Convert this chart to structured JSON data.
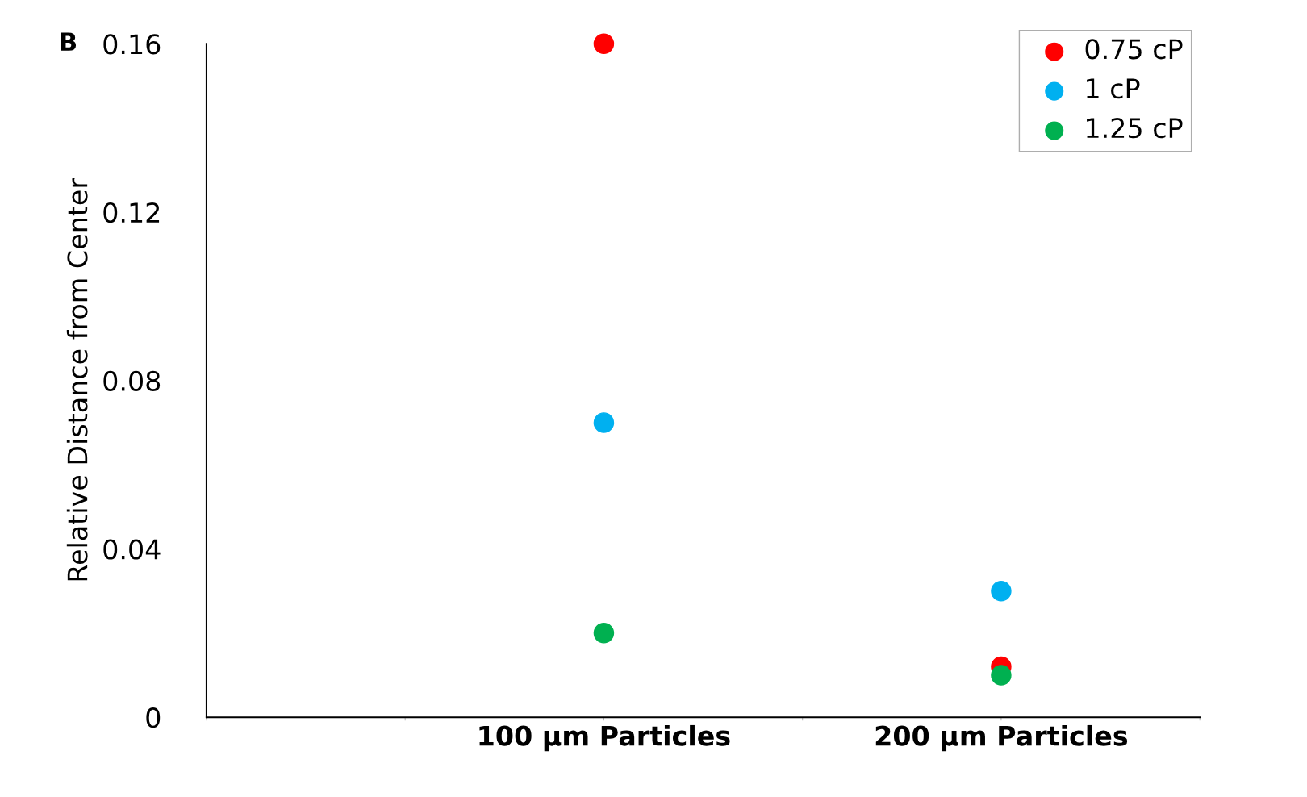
{
  "chart_data": {
    "type": "scatter",
    "ylabel": "Relative Distance from Center",
    "annotations": [
      "B"
    ],
    "categories": [
      null,
      null,
      "100 μm Particles",
      null,
      "200 μm Particles",
      null
    ],
    "ylim": [
      0,
      0.16
    ],
    "yticks": [
      0,
      0.04,
      0.08,
      0.12,
      0.16
    ],
    "series": [
      {
        "name": "0.75 cP",
        "color": "#ff0000",
        "values": [
          null,
          null,
          0.16,
          null,
          0.012,
          null
        ]
      },
      {
        "name": "1 cP",
        "color": "#00b0f0",
        "values": [
          null,
          null,
          0.07,
          null,
          0.03,
          null
        ]
      },
      {
        "name": "1.25 cP",
        "color": "#00b050",
        "values": [
          null,
          null,
          0.02,
          null,
          0.01,
          null
        ]
      }
    ],
    "marker": "circle",
    "grid": false,
    "legend": "top right"
  }
}
